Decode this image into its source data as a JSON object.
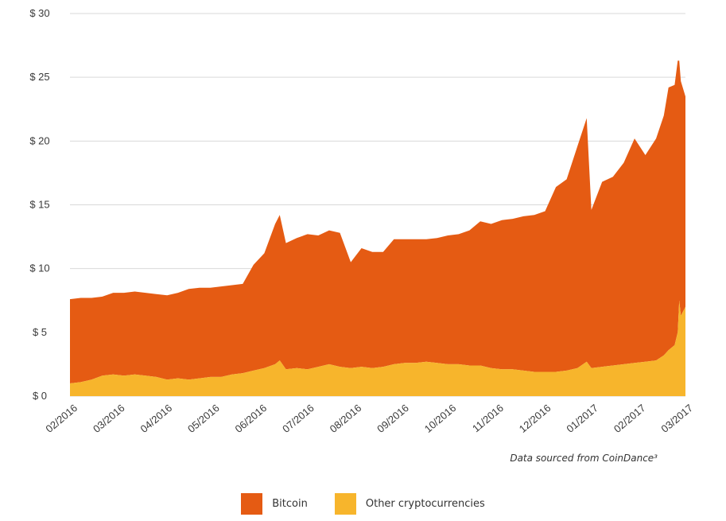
{
  "source_note": "Data sourced from CoinDance³",
  "colors": {
    "bitcoin": "#e55b13",
    "other": "#f7b52c",
    "grid": "#d9d9d9"
  },
  "chart_data": {
    "type": "area",
    "stacked": true,
    "title": "",
    "xlabel": "",
    "ylabel": "",
    "ylim": [
      0,
      30
    ],
    "y_ticks": [
      0,
      5,
      10,
      15,
      20,
      25,
      30
    ],
    "y_tick_labels": [
      "$ 0",
      "$ 5",
      "$ 10",
      "$ 15",
      "$ 20",
      "$ 25",
      "$ 30"
    ],
    "x_ticks": [
      "02/2016",
      "03/2016",
      "04/2016",
      "05/2016",
      "06/2016",
      "07/2016",
      "08/2016",
      "09/2016",
      "10/2016",
      "11/2016",
      "12/2016",
      "01/2017",
      "02/2017",
      "03/2017"
    ],
    "x_range": [
      "2016-02-01",
      "2017-03-06"
    ],
    "grid": true,
    "legend_position": "bottom-center",
    "series": [
      {
        "name": "Other cryptocurrencies",
        "color": "#f7b52c",
        "points": [
          [
            "2016-02-01",
            1.0
          ],
          [
            "2016-02-08",
            1.1
          ],
          [
            "2016-02-15",
            1.3
          ],
          [
            "2016-02-22",
            1.6
          ],
          [
            "2016-02-29",
            1.7
          ],
          [
            "2016-03-07",
            1.6
          ],
          [
            "2016-03-14",
            1.7
          ],
          [
            "2016-03-21",
            1.6
          ],
          [
            "2016-03-28",
            1.5
          ],
          [
            "2016-04-04",
            1.3
          ],
          [
            "2016-04-11",
            1.4
          ],
          [
            "2016-04-18",
            1.3
          ],
          [
            "2016-04-25",
            1.4
          ],
          [
            "2016-05-02",
            1.5
          ],
          [
            "2016-05-09",
            1.5
          ],
          [
            "2016-05-16",
            1.7
          ],
          [
            "2016-05-23",
            1.8
          ],
          [
            "2016-05-30",
            2.0
          ],
          [
            "2016-06-06",
            2.2
          ],
          [
            "2016-06-13",
            2.5
          ],
          [
            "2016-06-16",
            2.8
          ],
          [
            "2016-06-20",
            2.1
          ],
          [
            "2016-06-27",
            2.2
          ],
          [
            "2016-07-04",
            2.1
          ],
          [
            "2016-07-11",
            2.3
          ],
          [
            "2016-07-18",
            2.5
          ],
          [
            "2016-07-25",
            2.3
          ],
          [
            "2016-08-01",
            2.2
          ],
          [
            "2016-08-08",
            2.3
          ],
          [
            "2016-08-15",
            2.2
          ],
          [
            "2016-08-22",
            2.3
          ],
          [
            "2016-08-29",
            2.5
          ],
          [
            "2016-09-05",
            2.6
          ],
          [
            "2016-09-12",
            2.6
          ],
          [
            "2016-09-19",
            2.7
          ],
          [
            "2016-09-26",
            2.6
          ],
          [
            "2016-10-03",
            2.5
          ],
          [
            "2016-10-10",
            2.5
          ],
          [
            "2016-10-17",
            2.4
          ],
          [
            "2016-10-24",
            2.4
          ],
          [
            "2016-10-31",
            2.2
          ],
          [
            "2016-11-07",
            2.1
          ],
          [
            "2016-11-14",
            2.1
          ],
          [
            "2016-11-21",
            2.0
          ],
          [
            "2016-11-28",
            1.9
          ],
          [
            "2016-12-05",
            1.9
          ],
          [
            "2016-12-12",
            1.9
          ],
          [
            "2016-12-19",
            2.0
          ],
          [
            "2016-12-26",
            2.2
          ],
          [
            "2017-01-01",
            2.7
          ],
          [
            "2017-01-04",
            2.2
          ],
          [
            "2017-01-11",
            2.3
          ],
          [
            "2017-01-18",
            2.4
          ],
          [
            "2017-01-25",
            2.5
          ],
          [
            "2017-02-01",
            2.6
          ],
          [
            "2017-02-08",
            2.7
          ],
          [
            "2017-02-15",
            2.8
          ],
          [
            "2017-02-20",
            3.2
          ],
          [
            "2017-02-23",
            3.6
          ],
          [
            "2017-02-27",
            4.0
          ],
          [
            "2017-03-01",
            5.0
          ],
          [
            "2017-03-02",
            7.5
          ],
          [
            "2017-03-03",
            6.3
          ],
          [
            "2017-03-06",
            7.0
          ]
        ]
      },
      {
        "name": "Bitcoin",
        "color": "#e55b13",
        "points": [
          [
            "2016-02-01",
            6.6
          ],
          [
            "2016-02-08",
            6.6
          ],
          [
            "2016-02-15",
            6.4
          ],
          [
            "2016-02-22",
            6.2
          ],
          [
            "2016-02-29",
            6.4
          ],
          [
            "2016-03-07",
            6.5
          ],
          [
            "2016-03-14",
            6.5
          ],
          [
            "2016-03-21",
            6.5
          ],
          [
            "2016-03-28",
            6.5
          ],
          [
            "2016-04-04",
            6.6
          ],
          [
            "2016-04-11",
            6.7
          ],
          [
            "2016-04-18",
            7.1
          ],
          [
            "2016-04-25",
            7.1
          ],
          [
            "2016-05-02",
            7.0
          ],
          [
            "2016-05-09",
            7.1
          ],
          [
            "2016-05-16",
            7.0
          ],
          [
            "2016-05-23",
            7.0
          ],
          [
            "2016-05-30",
            8.3
          ],
          [
            "2016-06-06",
            9.0
          ],
          [
            "2016-06-13",
            11.0
          ],
          [
            "2016-06-16",
            11.4
          ],
          [
            "2016-06-20",
            9.9
          ],
          [
            "2016-06-27",
            10.2
          ],
          [
            "2016-07-04",
            10.6
          ],
          [
            "2016-07-11",
            10.3
          ],
          [
            "2016-07-18",
            10.5
          ],
          [
            "2016-07-25",
            10.5
          ],
          [
            "2016-08-01",
            8.3
          ],
          [
            "2016-08-08",
            9.3
          ],
          [
            "2016-08-15",
            9.1
          ],
          [
            "2016-08-22",
            9.0
          ],
          [
            "2016-08-29",
            9.8
          ],
          [
            "2016-09-05",
            9.7
          ],
          [
            "2016-09-12",
            9.7
          ],
          [
            "2016-09-19",
            9.6
          ],
          [
            "2016-09-26",
            9.8
          ],
          [
            "2016-10-03",
            10.1
          ],
          [
            "2016-10-10",
            10.2
          ],
          [
            "2016-10-17",
            10.6
          ],
          [
            "2016-10-24",
            11.3
          ],
          [
            "2016-10-31",
            11.3
          ],
          [
            "2016-11-07",
            11.7
          ],
          [
            "2016-11-14",
            11.8
          ],
          [
            "2016-11-21",
            12.1
          ],
          [
            "2016-11-28",
            12.3
          ],
          [
            "2016-12-05",
            12.6
          ],
          [
            "2016-12-12",
            14.5
          ],
          [
            "2016-12-19",
            15.0
          ],
          [
            "2016-12-26",
            17.4
          ],
          [
            "2017-01-01",
            19.1
          ],
          [
            "2017-01-04",
            12.4
          ],
          [
            "2017-01-11",
            14.5
          ],
          [
            "2017-01-18",
            14.8
          ],
          [
            "2017-01-25",
            15.8
          ],
          [
            "2017-02-01",
            17.6
          ],
          [
            "2017-02-08",
            16.2
          ],
          [
            "2017-02-15",
            17.4
          ],
          [
            "2017-02-20",
            18.8
          ],
          [
            "2017-02-23",
            20.6
          ],
          [
            "2017-02-27",
            20.4
          ],
          [
            "2017-03-01",
            21.3
          ],
          [
            "2017-03-02",
            18.8
          ],
          [
            "2017-03-03",
            18.4
          ],
          [
            "2017-03-06",
            16.5
          ]
        ]
      }
    ]
  },
  "legend": [
    {
      "label": "Bitcoin",
      "color": "#e55b13"
    },
    {
      "label": "Other cryptocurrencies",
      "color": "#f7b52c"
    }
  ]
}
